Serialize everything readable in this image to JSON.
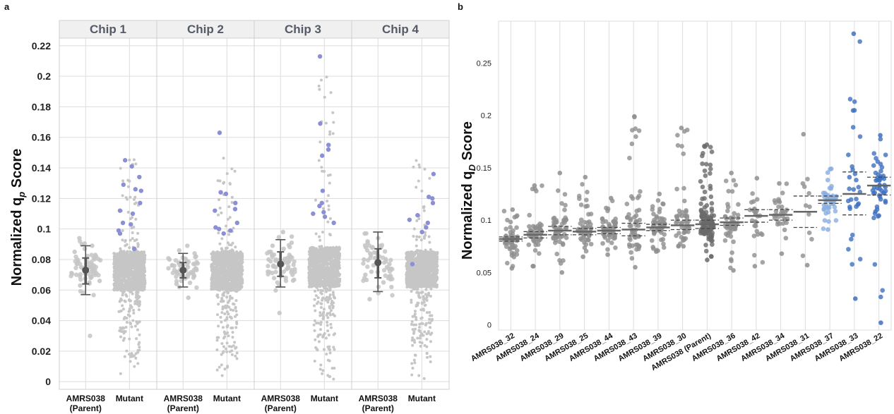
{
  "panel_a": {
    "letter": "a",
    "ylabel": "Normalized q",
    "ylabel_sub": "p",
    "ylabel_suffix": " Score",
    "yticks": [
      "0",
      "0.02",
      "0.04",
      "0.06",
      "0.08",
      "0.1",
      "0.12",
      "0.14",
      "0.16",
      "0.18",
      "0.2",
      "0.22"
    ],
    "xlabels": {
      "parent_line1": "AMRS038",
      "parent_line2": "(Parent)",
      "mutant": "Mutant"
    }
  },
  "panel_b": {
    "letter": "b",
    "ylabel": "Normalized q",
    "ylabel_sub": "D",
    "ylabel_suffix": " Score",
    "yticks": [
      "0",
      "0.05",
      "0.1",
      "0.15",
      "0.2",
      "0.25"
    ]
  },
  "colors": {
    "grey_point": "#c6c6c6",
    "dark_point": "#8c8c8c",
    "purple_point": "#8b8fd6",
    "light_blue": "#8aaee0",
    "blue": "#3f6fbf",
    "dark_grey": "#555555",
    "gridline": "#dddddd",
    "strip_fill": "#f0f0f0"
  },
  "chart_data": [
    {
      "type": "scatter",
      "panel": "a",
      "facets": [
        "Chip 1",
        "Chip 2",
        "Chip 3",
        "Chip 4"
      ],
      "categories": [
        "AMRS038\n(Parent)",
        "Mutant"
      ],
      "ylim": [
        -0.005,
        0.225
      ],
      "grid": true,
      "parent_summary": [
        {
          "facet": "Chip 1",
          "mean": 0.073,
          "ci_low": 0.064,
          "ci_high": 0.081,
          "sd_low": 0.057,
          "sd_high": 0.089
        },
        {
          "facet": "Chip 2",
          "mean": 0.073,
          "ci_low": 0.068,
          "ci_high": 0.078,
          "sd_low": 0.062,
          "sd_high": 0.084
        },
        {
          "facet": "Chip 3",
          "mean": 0.077,
          "ci_low": 0.069,
          "ci_high": 0.085,
          "sd_low": 0.062,
          "sd_high": 0.093
        },
        {
          "facet": "Chip 4",
          "mean": 0.078,
          "ci_low": 0.068,
          "ci_high": 0.087,
          "sd_low": 0.059,
          "sd_high": 0.098
        }
      ],
      "parent_points": [
        {
          "facet": "Chip 1",
          "values": [
            0.03,
            0.063,
            0.065,
            0.066,
            0.068,
            0.069,
            0.07,
            0.071,
            0.072,
            0.073,
            0.074,
            0.075,
            0.076,
            0.077,
            0.078,
            0.079,
            0.08,
            0.081,
            0.082,
            0.083,
            0.085,
            0.087,
            0.089,
            0.09,
            0.094
          ]
        },
        {
          "facet": "Chip 2",
          "values": [
            0.055,
            0.062,
            0.064,
            0.066,
            0.068,
            0.069,
            0.07,
            0.071,
            0.072,
            0.073,
            0.074,
            0.075,
            0.076,
            0.077,
            0.078,
            0.079,
            0.08,
            0.082,
            0.084,
            0.086,
            0.089
          ]
        },
        {
          "facet": "Chip 3",
          "values": [
            0.045,
            0.063,
            0.066,
            0.068,
            0.07,
            0.072,
            0.073,
            0.075,
            0.076,
            0.077,
            0.078,
            0.079,
            0.08,
            0.081,
            0.082,
            0.083,
            0.085,
            0.087,
            0.089,
            0.091,
            0.095,
            0.098
          ]
        },
        {
          "facet": "Chip 4",
          "values": [
            0.054,
            0.058,
            0.062,
            0.065,
            0.067,
            0.069,
            0.07,
            0.072,
            0.074,
            0.075,
            0.077,
            0.078,
            0.08,
            0.081,
            0.082,
            0.084,
            0.086,
            0.088,
            0.091,
            0.094,
            0.097
          ]
        }
      ],
      "mutant_highlight": [
        {
          "facet": "Chip 1",
          "values": [
            0.145,
            0.141,
            0.134,
            0.129,
            0.126,
            0.125,
            0.117,
            0.112,
            0.11,
            0.104,
            0.103,
            0.099,
            0.097,
            0.087
          ]
        },
        {
          "facet": "Chip 2",
          "values": [
            0.163,
            0.124,
            0.123,
            0.117,
            0.113,
            0.112,
            0.104,
            0.101,
            0.1,
            0.099,
            0.097
          ]
        },
        {
          "facet": "Chip 3",
          "values": [
            0.213,
            0.169,
            0.155,
            0.152,
            0.148,
            0.125,
            0.117,
            0.115,
            0.111,
            0.11,
            0.108,
            0.104
          ]
        },
        {
          "facet": "Chip 4",
          "values": [
            0.136,
            0.121,
            0.12,
            0.117,
            0.109,
            0.106,
            0.104,
            0.101,
            0.098,
            0.077
          ]
        }
      ],
      "mutant_range": [
        {
          "facet": "Chip 1",
          "min": 0.001,
          "max": 0.148,
          "core_low": 0.06,
          "core_high": 0.085
        },
        {
          "facet": "Chip 2",
          "min": 0.001,
          "max": 0.151,
          "core_low": 0.06,
          "core_high": 0.085
        },
        {
          "facet": "Chip 3",
          "min": -0.004,
          "max": 0.201,
          "core_low": 0.062,
          "core_high": 0.088
        },
        {
          "facet": "Chip 4",
          "min": 0.001,
          "max": 0.149,
          "core_low": 0.062,
          "core_high": 0.085
        }
      ]
    },
    {
      "type": "scatter",
      "panel": "b",
      "categories": [
        "AMRS038_32",
        "AMRS038_24",
        "AMRS038_29",
        "AMRS038_25",
        "AMRS038_44",
        "AMRS038_43",
        "AMRS038_39",
        "AMRS038_30",
        "AMRS038 (Parent)",
        "AMRS038_36",
        "AMRS038_42",
        "AMRS038_34",
        "AMRS038_31",
        "AMRS038_37",
        "AMRS038_33",
        "AMRS038_22"
      ],
      "ylim": [
        -0.005,
        0.29
      ],
      "grid": true,
      "series": [
        {
          "category": "AMRS038_32",
          "mean": 0.082,
          "ci_low": 0.08,
          "ci_high": 0.084,
          "min": 0.054,
          "max": 0.11,
          "n": 60,
          "color": "grey"
        },
        {
          "category": "AMRS038_24",
          "mean": 0.086,
          "ci_low": 0.083,
          "ci_high": 0.089,
          "min": 0.056,
          "max": 0.133,
          "n": 60,
          "color": "grey"
        },
        {
          "category": "AMRS038_29",
          "mean": 0.09,
          "ci_low": 0.086,
          "ci_high": 0.094,
          "min": 0.05,
          "max": 0.145,
          "n": 60,
          "color": "grey"
        },
        {
          "category": "AMRS038_25",
          "mean": 0.089,
          "ci_low": 0.086,
          "ci_high": 0.092,
          "min": 0.065,
          "max": 0.141,
          "n": 60,
          "color": "grey"
        },
        {
          "category": "AMRS038_44",
          "mean": 0.09,
          "ci_low": 0.087,
          "ci_high": 0.093,
          "min": 0.067,
          "max": 0.121,
          "n": 55,
          "color": "grey"
        },
        {
          "category": "AMRS038_43",
          "mean": 0.091,
          "ci_low": 0.085,
          "ci_high": 0.097,
          "min": 0.055,
          "max": 0.199,
          "n": 55,
          "color": "grey"
        },
        {
          "category": "AMRS038_39",
          "mean": 0.093,
          "ci_low": 0.09,
          "ci_high": 0.096,
          "min": 0.07,
          "max": 0.125,
          "n": 55,
          "color": "grey"
        },
        {
          "category": "AMRS038_30",
          "mean": 0.095,
          "ci_low": 0.091,
          "ci_high": 0.1,
          "min": 0.075,
          "max": 0.188,
          "n": 50,
          "color": "grey"
        },
        {
          "category": "AMRS038 (Parent)",
          "mean": 0.096,
          "ci_low": 0.092,
          "ci_high": 0.1,
          "min": 0.062,
          "max": 0.172,
          "n": 120,
          "color": "darkgrey"
        },
        {
          "category": "AMRS038_36",
          "mean": 0.098,
          "ci_low": 0.095,
          "ci_high": 0.102,
          "min": 0.052,
          "max": 0.145,
          "n": 55,
          "color": "grey"
        },
        {
          "category": "AMRS038_42",
          "mean": 0.104,
          "ci_low": 0.098,
          "ci_high": 0.11,
          "min": 0.056,
          "max": 0.14,
          "n": 25,
          "color": "grey"
        },
        {
          "category": "AMRS038_34",
          "mean": 0.105,
          "ci_low": 0.1,
          "ci_high": 0.11,
          "min": 0.068,
          "max": 0.135,
          "n": 30,
          "color": "grey"
        },
        {
          "category": "AMRS038_31",
          "mean": 0.108,
          "ci_low": 0.093,
          "ci_high": 0.123,
          "min": 0.057,
          "max": 0.182,
          "n": 10,
          "color": "grey"
        },
        {
          "category": "AMRS038_37",
          "mean": 0.119,
          "ci_low": 0.116,
          "ci_high": 0.123,
          "min": 0.091,
          "max": 0.149,
          "n": 45,
          "color": "lightblue"
        },
        {
          "category": "AMRS038_33",
          "mean": 0.125,
          "ci_low": 0.105,
          "ci_high": 0.146,
          "min": 0.025,
          "max": 0.278,
          "n": 30,
          "color": "blue"
        },
        {
          "category": "AMRS038_22",
          "mean": 0.133,
          "ci_low": 0.124,
          "ci_high": 0.141,
          "min": 0.002,
          "max": 0.181,
          "n": 50,
          "color": "blue"
        }
      ]
    }
  ]
}
